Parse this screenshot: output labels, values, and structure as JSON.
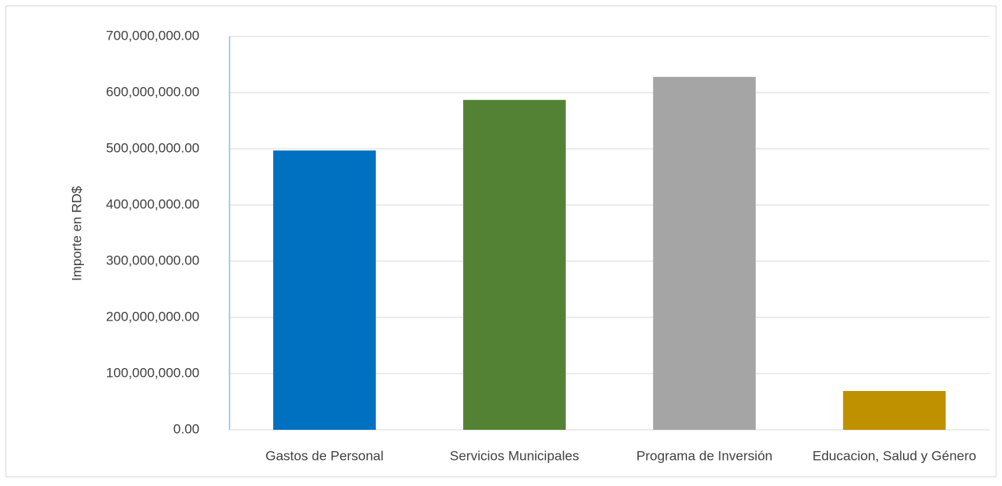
{
  "chart_data": {
    "type": "bar",
    "y_label": "Importe en RD$",
    "categories": [
      "Gastos de Personal",
      "Servicios Municipales",
      "Programa de Inversión",
      "Educacion, Salud y Género"
    ],
    "values": [
      497000000,
      587000000,
      628000000,
      69000000
    ],
    "colors": [
      "#0070c0",
      "#548235",
      "#a5a5a5",
      "#bf9000"
    ],
    "ylim": [
      0,
      700000000
    ],
    "yticks": [
      {
        "value": 0,
        "label": "0.00"
      },
      {
        "value": 100000000,
        "label": "100,000,000.00"
      },
      {
        "value": 200000000,
        "label": "200,000,000.00"
      },
      {
        "value": 300000000,
        "label": "300,000,000.00"
      },
      {
        "value": 400000000,
        "label": "400,000,000.00"
      },
      {
        "value": 500000000,
        "label": "500,000,000.00"
      },
      {
        "value": 600000000,
        "label": "600,000,000.00"
      },
      {
        "value": 700000000,
        "label": "700,000,000.00"
      }
    ],
    "grid": true
  }
}
